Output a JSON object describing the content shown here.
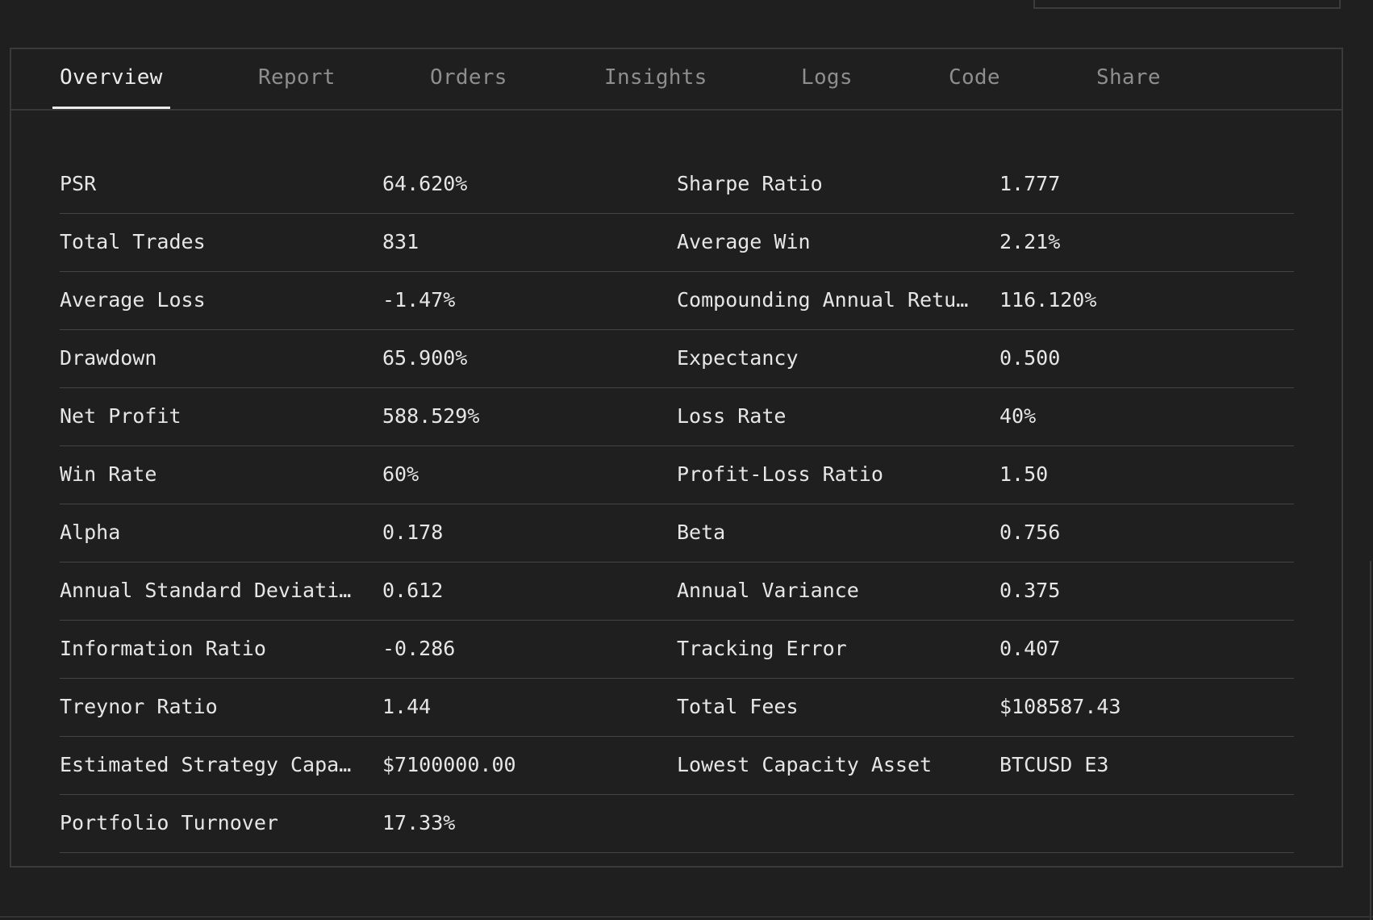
{
  "tabs": [
    {
      "label": "Overview",
      "active": true
    },
    {
      "label": "Report",
      "active": false
    },
    {
      "label": "Orders",
      "active": false
    },
    {
      "label": "Insights",
      "active": false
    },
    {
      "label": "Logs",
      "active": false
    },
    {
      "label": "Code",
      "active": false
    },
    {
      "label": "Share",
      "active": false
    }
  ],
  "stats": [
    {
      "left": {
        "label": "PSR",
        "value": "64.620%"
      },
      "right": {
        "label": "Sharpe Ratio",
        "value": "1.777"
      }
    },
    {
      "left": {
        "label": "Total Trades",
        "value": "831"
      },
      "right": {
        "label": "Average Win",
        "value": "2.21%"
      }
    },
    {
      "left": {
        "label": "Average Loss",
        "value": "-1.47%"
      },
      "right": {
        "label": "Compounding Annual Return",
        "value": "116.120%"
      }
    },
    {
      "left": {
        "label": "Drawdown",
        "value": "65.900%"
      },
      "right": {
        "label": "Expectancy",
        "value": "0.500"
      }
    },
    {
      "left": {
        "label": "Net Profit",
        "value": "588.529%"
      },
      "right": {
        "label": "Loss Rate",
        "value": "40%"
      }
    },
    {
      "left": {
        "label": "Win Rate",
        "value": "60%"
      },
      "right": {
        "label": "Profit-Loss Ratio",
        "value": "1.50"
      }
    },
    {
      "left": {
        "label": "Alpha",
        "value": "0.178"
      },
      "right": {
        "label": "Beta",
        "value": "0.756"
      }
    },
    {
      "left": {
        "label": "Annual Standard Deviation",
        "value": "0.612"
      },
      "right": {
        "label": "Annual Variance",
        "value": "0.375"
      }
    },
    {
      "left": {
        "label": "Information Ratio",
        "value": "-0.286"
      },
      "right": {
        "label": "Tracking Error",
        "value": "0.407"
      }
    },
    {
      "left": {
        "label": "Treynor Ratio",
        "value": "1.44"
      },
      "right": {
        "label": "Total Fees",
        "value": "$108587.43"
      }
    },
    {
      "left": {
        "label": "Estimated Strategy Capacity",
        "value": "$7100000.00"
      },
      "right": {
        "label": "Lowest Capacity Asset",
        "value": "BTCUSD E3"
      }
    },
    {
      "left": {
        "label": "Portfolio Turnover",
        "value": "17.33%"
      },
      "right": {
        "label": "",
        "value": ""
      }
    }
  ]
}
